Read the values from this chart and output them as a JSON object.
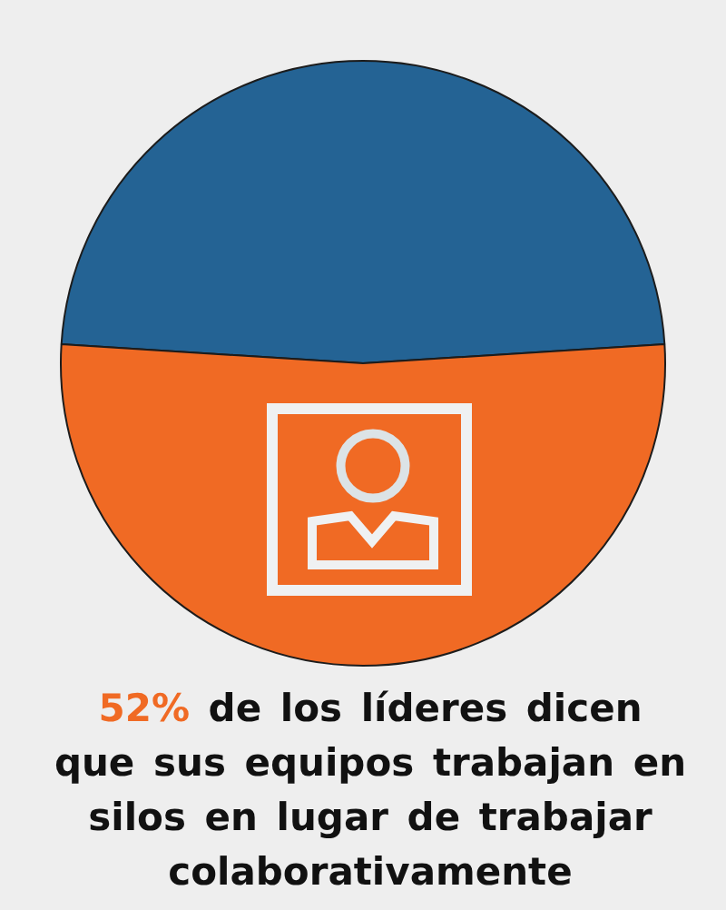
{
  "chart_data": {
    "type": "pie",
    "categories": [
      null,
      null
    ],
    "values": [
      48,
      52
    ],
    "colors": [
      "#246394",
      "#f06a24"
    ],
    "annotations": [
      "52% de los líderes dicen que sus equipos trabajan en silos en lugar de trabajar colaborativamente"
    ]
  }
}
